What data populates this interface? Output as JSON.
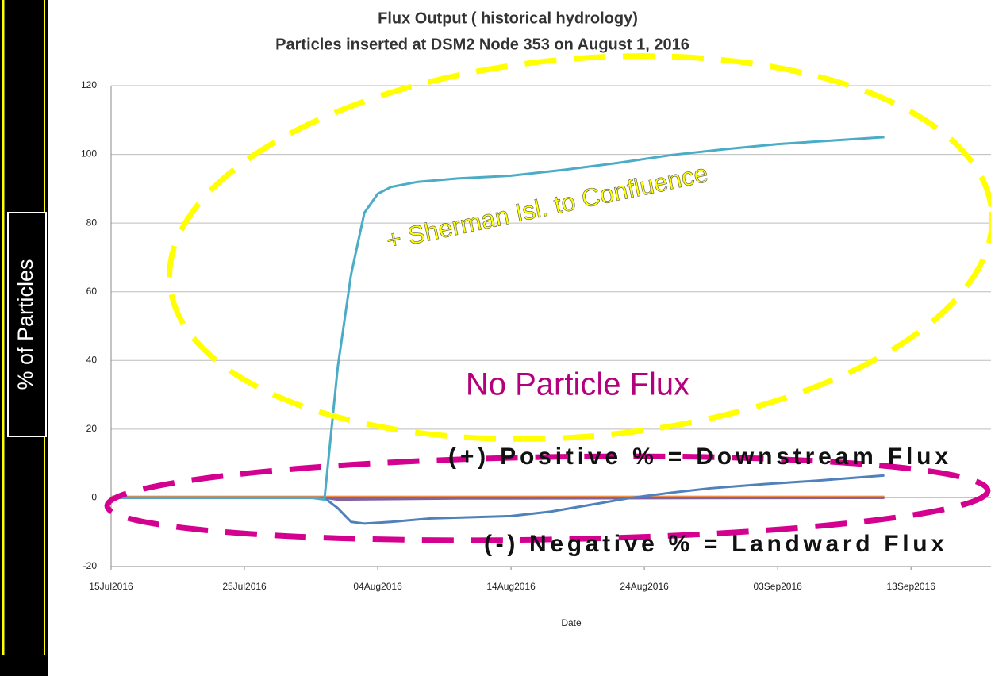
{
  "chart_data": {
    "type": "line",
    "title": "Flux Output ( historical hydrology)",
    "subtitle": "Particles inserted at DSM2 Node 353 on August 1, 2016",
    "xlabel": "Date",
    "ylabel": "% of Particles",
    "xlim": [
      "2016-07-15",
      "2016-09-19"
    ],
    "xticks": [
      {
        "value": "2016-07-15",
        "label": "15Jul2016"
      },
      {
        "value": "2016-07-25",
        "label": "25Jul2016"
      },
      {
        "value": "2016-08-04",
        "label": "04Aug2016"
      },
      {
        "value": "2016-08-14",
        "label": "14Aug2016"
      },
      {
        "value": "2016-08-24",
        "label": "24Aug2016"
      },
      {
        "value": "2016-09-03",
        "label": "03Sep2016"
      },
      {
        "value": "2016-09-13",
        "label": "13Sep2016"
      }
    ],
    "ylim": [
      -20,
      120
    ],
    "yticks": [
      -20,
      0,
      20,
      40,
      60,
      80,
      100,
      120
    ],
    "grid": true,
    "series": [
      {
        "color": "#f79646",
        "x": [
          "2016-07-15",
          "2016-09-11"
        ],
        "values": [
          0.3,
          0.3
        ]
      },
      {
        "color": "#c0504d",
        "x": [
          "2016-07-15",
          "2016-09-11"
        ],
        "values": [
          0,
          0
        ]
      },
      {
        "color": "#8064a2",
        "x": [
          "2016-07-15",
          "2016-07-31",
          "2016-08-01",
          "2016-08-10",
          "2016-09-11"
        ],
        "values": [
          0,
          0,
          -0.5,
          -0.2,
          0
        ]
      },
      {
        "color": "#4f81bd",
        "x": [
          "2016-07-15",
          "2016-07-31",
          "2016-08-01",
          "2016-08-02",
          "2016-08-03",
          "2016-08-05",
          "2016-08-08",
          "2016-08-14",
          "2016-08-17",
          "2016-08-20",
          "2016-08-23",
          "2016-08-26",
          "2016-08-29",
          "2016-09-02",
          "2016-09-06",
          "2016-09-11"
        ],
        "values": [
          0,
          0,
          -3,
          -7,
          -7.5,
          -7,
          -6,
          -5.3,
          -4,
          -2,
          0,
          1.5,
          2.8,
          4,
          5,
          6.5
        ]
      },
      {
        "color": "#4bacc6",
        "x": [
          "2016-07-15",
          "2016-07-30",
          "2016-07-31",
          "2016-08-01",
          "2016-08-02",
          "2016-08-03",
          "2016-08-04",
          "2016-08-05",
          "2016-08-07",
          "2016-08-10",
          "2016-08-14",
          "2016-08-18",
          "2016-08-22",
          "2016-08-26",
          "2016-08-30",
          "2016-09-03",
          "2016-09-07",
          "2016-09-11"
        ],
        "values": [
          0,
          0,
          -0.5,
          38,
          65,
          83,
          88.5,
          90.5,
          92,
          93,
          93.8,
          95.5,
          97.5,
          99.8,
          101.5,
          103,
          104,
          105
        ]
      }
    ],
    "annotations": [
      {
        "text": "+ Sherman Isl. to Confluence",
        "color": "#ffff00"
      },
      {
        "text": "No Particle Flux",
        "color": "#b5007d"
      },
      {
        "text": "(+) Positive % = Downstream Flux",
        "color": "#111111"
      },
      {
        "text": "(-) Negative % = Landward Flux",
        "color": "#111111"
      }
    ]
  }
}
